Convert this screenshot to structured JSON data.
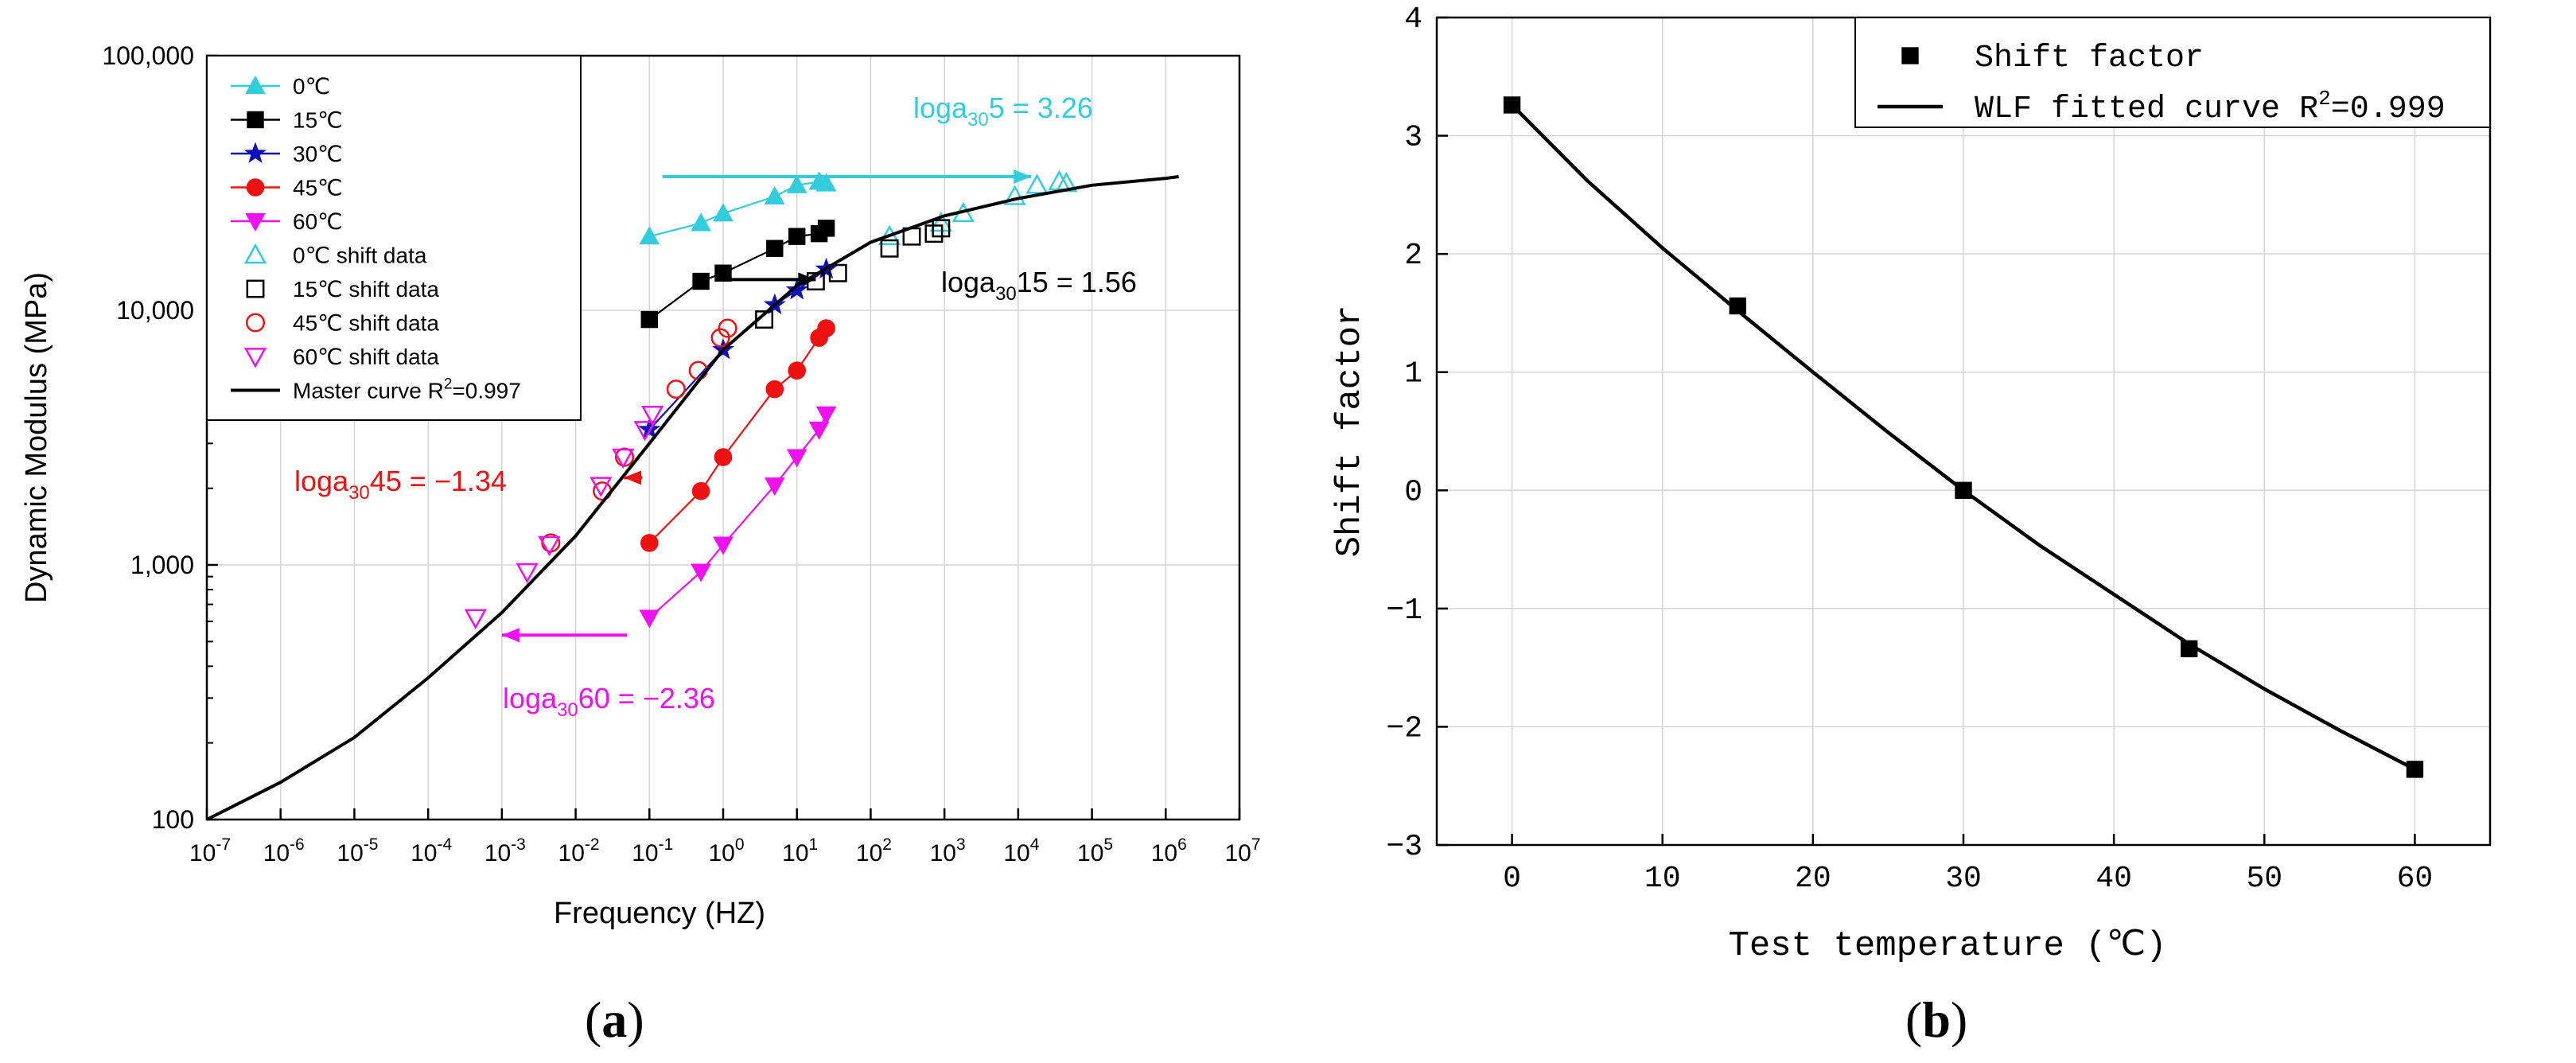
{
  "chart_data": [
    {
      "panel": "(a)",
      "panel_letter": "a",
      "type": "scatter",
      "title": "",
      "xlabel": "Frequency (HZ)",
      "ylabel": "Dynamic Modulus (MPa)",
      "xscale": "log",
      "yscale": "log",
      "xlim": [
        1e-07,
        10000000.0
      ],
      "ylim": [
        100,
        100000
      ],
      "xticks": [
        {
          "value": 1e-07,
          "base": "10",
          "exp": "-7"
        },
        {
          "value": 1e-06,
          "base": "10",
          "exp": "-6"
        },
        {
          "value": 1e-05,
          "base": "10",
          "exp": "-5"
        },
        {
          "value": 0.0001,
          "base": "10",
          "exp": "-4"
        },
        {
          "value": 0.001,
          "base": "10",
          "exp": "-3"
        },
        {
          "value": 0.01,
          "base": "10",
          "exp": "-2"
        },
        {
          "value": 0.1,
          "base": "10",
          "exp": "-1"
        },
        {
          "value": 1,
          "base": "10",
          "exp": "0"
        },
        {
          "value": 10,
          "base": "10",
          "exp": "1"
        },
        {
          "value": 100,
          "base": "10",
          "exp": "2"
        },
        {
          "value": 1000,
          "base": "10",
          "exp": "3"
        },
        {
          "value": 10000,
          "base": "10",
          "exp": "4"
        },
        {
          "value": 100000,
          "base": "10",
          "exp": "5"
        },
        {
          "value": 1000000,
          "base": "10",
          "exp": "6"
        },
        {
          "value": 10000000,
          "base": "10",
          "exp": "7"
        }
      ],
      "yticks": [
        {
          "value": 100,
          "label": "100"
        },
        {
          "value": 1000,
          "label": "1,000"
        },
        {
          "value": 10000,
          "label": "10,000"
        },
        {
          "value": 100000,
          "label": "100,000"
        }
      ],
      "grid": true,
      "legend_position": "top-left",
      "series": [
        {
          "name": "0℃",
          "key": "s0",
          "color": "#33CCDD",
          "marker": "triangle-up",
          "filled": true,
          "line": true,
          "points": [
            [
              0.1,
              19500
            ],
            [
              0.5,
              22000
            ],
            [
              1,
              24000
            ],
            [
              5,
              28000
            ],
            [
              10,
              31000
            ],
            [
              20,
              32000
            ],
            [
              25,
              31500
            ]
          ]
        },
        {
          "name": "15℃",
          "key": "s15",
          "color": "#000000",
          "marker": "square",
          "filled": true,
          "line": true,
          "points": [
            [
              0.1,
              9200
            ],
            [
              0.5,
              13000
            ],
            [
              1,
              14000
            ],
            [
              5,
              17500
            ],
            [
              10,
              19500
            ],
            [
              20,
              20000
            ],
            [
              25,
              21000
            ]
          ]
        },
        {
          "name": "30℃",
          "key": "s30",
          "color": "#1010BB",
          "marker": "star",
          "filled": true,
          "line": true,
          "points": [
            [
              0.1,
              3400
            ],
            [
              1,
              7000
            ],
            [
              5,
              10500
            ],
            [
              10,
              12000
            ],
            [
              25,
              14500
            ]
          ]
        },
        {
          "name": "45℃",
          "key": "s45",
          "color": "#EE1111",
          "marker": "circle",
          "filled": true,
          "line": true,
          "points": [
            [
              0.1,
              1220
            ],
            [
              0.5,
              1950
            ],
            [
              1,
              2650
            ],
            [
              5,
              4900
            ],
            [
              10,
              5800
            ],
            [
              20,
              7800
            ],
            [
              25,
              8500
            ]
          ]
        },
        {
          "name": "60℃",
          "key": "s60",
          "color": "#EE11EE",
          "marker": "triangle-down",
          "filled": true,
          "line": true,
          "points": [
            [
              0.1,
              620
            ],
            [
              0.5,
              940
            ],
            [
              1,
              1200
            ],
            [
              5,
              2050
            ],
            [
              10,
              2650
            ],
            [
              20,
              3400
            ],
            [
              25,
              3900
            ]
          ]
        },
        {
          "name": "0℃ shift data",
          "key": "s0s",
          "color": "#33CCDD",
          "marker": "triangle-up",
          "filled": false,
          "line": false,
          "points": [
            [
              180,
              19500
            ],
            [
              900,
              22000
            ],
            [
              1800,
              24000
            ],
            [
              9000,
              28000
            ],
            [
              18000,
              31000
            ],
            [
              36000,
              32000
            ],
            [
              45000,
              31500
            ]
          ]
        },
        {
          "name": "15℃ shift data",
          "key": "s15s",
          "color": "#000000",
          "marker": "square",
          "filled": false,
          "line": false,
          "points": [
            [
              3.6,
              9200
            ],
            [
              18,
              13000
            ],
            [
              36,
              14000
            ],
            [
              180,
              17500
            ],
            [
              360,
              19500
            ],
            [
              720,
              20000
            ],
            [
              900,
              21000
            ]
          ]
        },
        {
          "name": "45℃ shift data",
          "key": "s45s",
          "color": "#EE1111",
          "marker": "circle",
          "filled": false,
          "line": false,
          "points": [
            [
              0.0046,
              1220
            ],
            [
              0.023,
              1950
            ],
            [
              0.046,
              2650
            ],
            [
              0.23,
              4900
            ],
            [
              0.46,
              5800
            ],
            [
              0.92,
              7800
            ],
            [
              1.15,
              8500
            ]
          ]
        },
        {
          "name": "60℃ shift data",
          "key": "s60s",
          "color": "#EE11EE",
          "marker": "triangle-down",
          "filled": false,
          "line": false,
          "points": [
            [
              0.00044,
              620
            ],
            [
              0.0022,
              940
            ],
            [
              0.0044,
              1200
            ],
            [
              0.022,
              2050
            ],
            [
              0.044,
              2650
            ],
            [
              0.087,
              3400
            ],
            [
              0.11,
              3900
            ]
          ]
        },
        {
          "name": "Master curve R",
          "sup": "2",
          "suffix": "=0.997",
          "key": "master",
          "color": "#000000",
          "marker": "none",
          "filled": false,
          "line": true,
          "points": [
            [
              1e-07,
              100
            ],
            [
              1e-06,
              140
            ],
            [
              1e-05,
              210
            ],
            [
              0.0001,
              360
            ],
            [
              0.001,
              650
            ],
            [
              0.01,
              1300
            ],
            [
              0.1,
              3000
            ],
            [
              1,
              7000
            ],
            [
              10,
              12500
            ],
            [
              100,
              18500
            ],
            [
              1000,
              23500
            ],
            [
              10000,
              27500
            ],
            [
              100000,
              31000
            ],
            [
              1000000,
              33000
            ],
            [
              1500000,
              33500
            ]
          ]
        }
      ],
      "annotations": [
        {
          "key": "a0",
          "base": "loga",
          "sub": "30",
          "rest": "5 = 3.26",
          "color": "#33CCDD",
          "arrow_from": [
            0.15,
            33500
          ],
          "arrow_to": [
            15000,
            33500
          ]
        },
        {
          "key": "a15",
          "base": "loga",
          "sub": "30",
          "rest": "15 = 1.56",
          "color": "#000000",
          "arrow_from": [
            1.3,
            13200
          ],
          "arrow_to": [
            18,
            13200
          ]
        },
        {
          "key": "a45",
          "base": "loga",
          "sub": "30",
          "rest": "45 = −1.34",
          "color": "#EE1111",
          "arrow_from": [
            0.08,
            2200
          ],
          "arrow_to": [
            0.045,
            2200
          ]
        },
        {
          "key": "a60",
          "base": "loga",
          "sub": "30",
          "rest": "60 = −2.36",
          "color": "#EE11EE",
          "arrow_from": [
            0.05,
            530
          ],
          "arrow_to": [
            0.001,
            530
          ]
        }
      ]
    },
    {
      "panel": "(b)",
      "panel_letter": "b",
      "type": "scatter",
      "title": "",
      "xlabel": "Test temperature (℃)",
      "ylabel": "Shift factor",
      "xlim": [
        -5,
        65
      ],
      "ylim": [
        -3,
        4
      ],
      "xticks": [
        {
          "value": 0,
          "label": "0"
        },
        {
          "value": 10,
          "label": "10"
        },
        {
          "value": 20,
          "label": "20"
        },
        {
          "value": 30,
          "label": "30"
        },
        {
          "value": 40,
          "label": "40"
        },
        {
          "value": 50,
          "label": "50"
        },
        {
          "value": 60,
          "label": "60"
        }
      ],
      "yticks": [
        {
          "value": 4,
          "label": "4"
        },
        {
          "value": 3,
          "label": "3"
        },
        {
          "value": 2,
          "label": "2"
        },
        {
          "value": 1,
          "label": "1"
        },
        {
          "value": 0,
          "label": "0"
        },
        {
          "value": -1,
          "label": "−1"
        },
        {
          "value": -2,
          "label": "−2"
        },
        {
          "value": -3,
          "label": "−3"
        }
      ],
      "grid": true,
      "legend_position": "top-right",
      "series": [
        {
          "name": "Shift factor",
          "key": "sf",
          "color": "#000000",
          "marker": "square",
          "filled": true,
          "line": false,
          "points": [
            [
              0,
              3.26
            ],
            [
              15,
              1.56
            ],
            [
              30,
              0
            ],
            [
              45,
              -1.34
            ],
            [
              60,
              -2.36
            ]
          ]
        },
        {
          "name": "WLF fitted curve R",
          "sup": "2",
          "suffix": "=0.999",
          "key": "wlf",
          "color": "#000000",
          "marker": "none",
          "filled": false,
          "line": true,
          "points": [
            [
              0,
              3.26
            ],
            [
              5,
              2.62
            ],
            [
              10,
              2.05
            ],
            [
              15,
              1.52
            ],
            [
              20,
              1.0
            ],
            [
              25,
              0.49
            ],
            [
              30,
              0
            ],
            [
              35,
              -0.46
            ],
            [
              40,
              -0.88
            ],
            [
              45,
              -1.3
            ],
            [
              50,
              -1.68
            ],
            [
              55,
              -2.03
            ],
            [
              60,
              -2.36
            ]
          ]
        }
      ]
    }
  ]
}
